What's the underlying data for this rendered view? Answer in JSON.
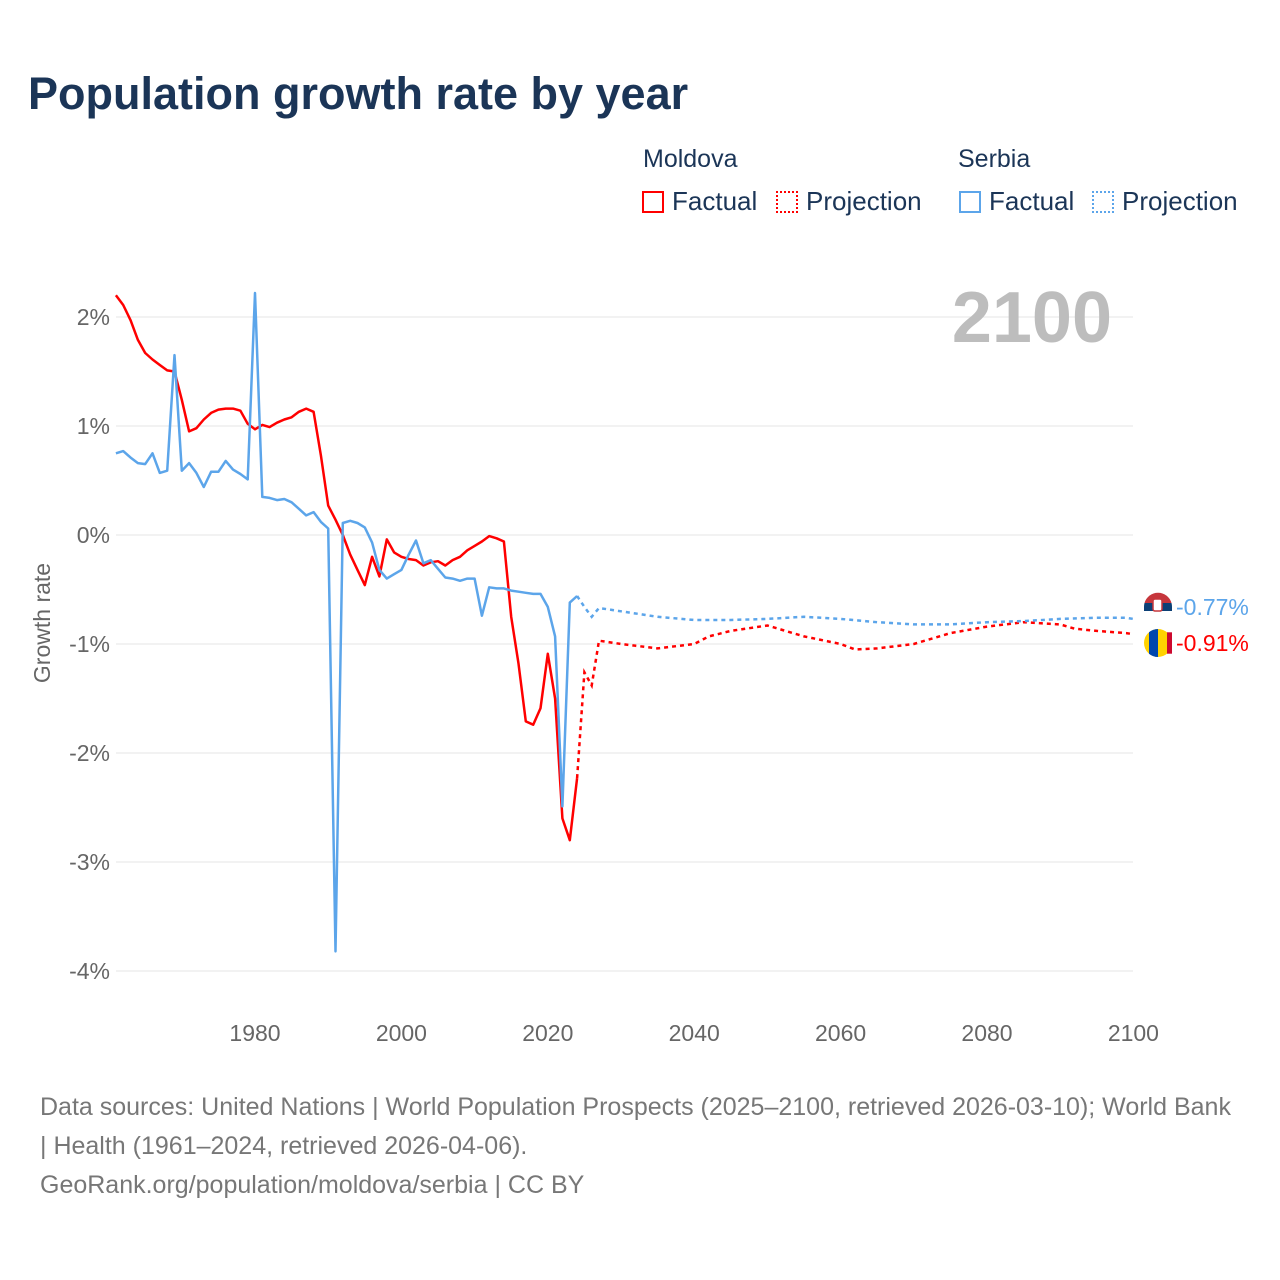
{
  "chart_data": {
    "type": "line",
    "title": "Population growth rate by year",
    "ylabel": "Growth rate",
    "xlabel": "",
    "xlim": [
      1961,
      2100
    ],
    "ylim": [
      -4.3,
      2.3
    ],
    "grid": true,
    "legend_placement": "top-right",
    "year_marker": "2100",
    "x_ticks": [
      "1980",
      "2000",
      "2020",
      "2040",
      "2060",
      "2080",
      "2100"
    ],
    "y_ticks": [
      {
        "v": 2,
        "label": "2%"
      },
      {
        "v": 1,
        "label": "1%"
      },
      {
        "v": 0,
        "label": "0%"
      },
      {
        "v": -1,
        "label": "-1%"
      },
      {
        "v": -2,
        "label": "-2%"
      },
      {
        "v": -3,
        "label": "-3%"
      },
      {
        "v": -4,
        "label": "-4%"
      }
    ],
    "legend": {
      "groups": [
        "Moldova",
        "Serbia"
      ],
      "factual": "Factual",
      "projection": "Projection"
    },
    "series": [
      {
        "name": "Moldova",
        "color": "#ff0000",
        "end_label": "-0.91%",
        "factual": {
          "x": [
            1961,
            1962,
            1963,
            1964,
            1965,
            1966,
            1967,
            1968,
            1969,
            1970,
            1971,
            1972,
            1973,
            1974,
            1975,
            1976,
            1977,
            1978,
            1979,
            1980,
            1981,
            1982,
            1983,
            1984,
            1985,
            1986,
            1987,
            1988,
            1989,
            1990,
            1991,
            1992,
            1993,
            1994,
            1995,
            1996,
            1997,
            1998,
            1999,
            2000,
            2001,
            2002,
            2003,
            2004,
            2005,
            2006,
            2007,
            2008,
            2009,
            2010,
            2011,
            2012,
            2013,
            2014,
            2015,
            2016,
            2017,
            2018,
            2019,
            2020,
            2021,
            2022,
            2023,
            2024
          ],
          "y": [
            2.2,
            2.11,
            1.97,
            1.79,
            1.67,
            1.61,
            1.56,
            1.51,
            1.5,
            1.24,
            0.95,
            0.98,
            1.06,
            1.12,
            1.15,
            1.16,
            1.16,
            1.14,
            1.02,
            0.97,
            1.01,
            0.99,
            1.03,
            1.06,
            1.08,
            1.13,
            1.16,
            1.13,
            0.73,
            0.27,
            0.14,
            0.0,
            -0.18,
            -0.32,
            -0.46,
            -0.2,
            -0.38,
            -0.04,
            -0.16,
            -0.2,
            -0.22,
            -0.23,
            -0.28,
            -0.25,
            -0.24,
            -0.28,
            -0.23,
            -0.2,
            -0.14,
            -0.1,
            -0.06,
            -0.01,
            -0.03,
            -0.06,
            -0.75,
            -1.18,
            -1.71,
            -1.74,
            -1.59,
            -1.09,
            -1.5,
            -2.6,
            -2.8,
            -2.23
          ]
        },
        "projection": {
          "x": [
            2024,
            2025,
            2026,
            2027,
            2028,
            2030,
            2035,
            2040,
            2042,
            2045,
            2050,
            2055,
            2060,
            2062,
            2065,
            2070,
            2075,
            2080,
            2085,
            2090,
            2092,
            2095,
            2099,
            2100
          ],
          "y": [
            -2.23,
            -1.26,
            -1.38,
            -0.97,
            -0.98,
            -1.0,
            -1.04,
            -1.0,
            -0.93,
            -0.88,
            -0.83,
            -0.93,
            -1.0,
            -1.05,
            -1.04,
            -1.0,
            -0.9,
            -0.84,
            -0.8,
            -0.82,
            -0.86,
            -0.88,
            -0.9,
            -0.91
          ]
        }
      },
      {
        "name": "Serbia",
        "color": "#5ca5ea",
        "end_label": "-0.77%",
        "factual": {
          "x": [
            1961,
            1962,
            1963,
            1964,
            1965,
            1966,
            1967,
            1968,
            1969,
            1970,
            1971,
            1972,
            1973,
            1974,
            1975,
            1976,
            1977,
            1978,
            1979,
            1980,
            1981,
            1982,
            1983,
            1984,
            1985,
            1986,
            1987,
            1988,
            1989,
            1990,
            1991,
            1992,
            1993,
            1994,
            1995,
            1996,
            1997,
            1998,
            1999,
            2000,
            2001,
            2002,
            2003,
            2004,
            2005,
            2006,
            2007,
            2008,
            2009,
            2010,
            2011,
            2012,
            2013,
            2014,
            2015,
            2016,
            2017,
            2018,
            2019,
            2020,
            2021,
            2022,
            2023,
            2024
          ],
          "y": [
            0.75,
            0.77,
            0.71,
            0.66,
            0.65,
            0.75,
            0.57,
            0.59,
            1.65,
            0.59,
            0.66,
            0.57,
            0.44,
            0.58,
            0.58,
            0.68,
            0.6,
            0.56,
            0.51,
            2.22,
            0.35,
            0.34,
            0.32,
            0.33,
            0.3,
            0.24,
            0.18,
            0.21,
            0.12,
            0.06,
            -3.82,
            0.11,
            0.13,
            0.11,
            0.07,
            -0.07,
            -0.32,
            -0.4,
            -0.36,
            -0.32,
            -0.18,
            -0.05,
            -0.26,
            -0.23,
            -0.31,
            -0.39,
            -0.4,
            -0.42,
            -0.4,
            -0.4,
            -0.74,
            -0.48,
            -0.49,
            -0.49,
            -0.51,
            -0.52,
            -0.53,
            -0.54,
            -0.54,
            -0.66,
            -0.93,
            -2.49,
            -0.62,
            -0.56
          ]
        },
        "projection": {
          "x": [
            2024,
            2025,
            2026,
            2027,
            2028,
            2030,
            2035,
            2040,
            2045,
            2050,
            2055,
            2060,
            2065,
            2070,
            2075,
            2080,
            2085,
            2090,
            2095,
            2099,
            2100
          ],
          "y": [
            -0.56,
            -0.66,
            -0.75,
            -0.67,
            -0.68,
            -0.7,
            -0.75,
            -0.78,
            -0.78,
            -0.77,
            -0.75,
            -0.77,
            -0.8,
            -0.82,
            -0.82,
            -0.8,
            -0.79,
            -0.77,
            -0.76,
            -0.76,
            -0.77
          ]
        }
      }
    ]
  },
  "footer": {
    "sources": "Data sources: United Nations | World Population Prospects (2025–2100, retrieved 2026-03-10); World Bank | Health (1961–2024, retrieved 2026-04-06).",
    "credit": "GeoRank.org/population/moldova/serbia | CC BY"
  }
}
